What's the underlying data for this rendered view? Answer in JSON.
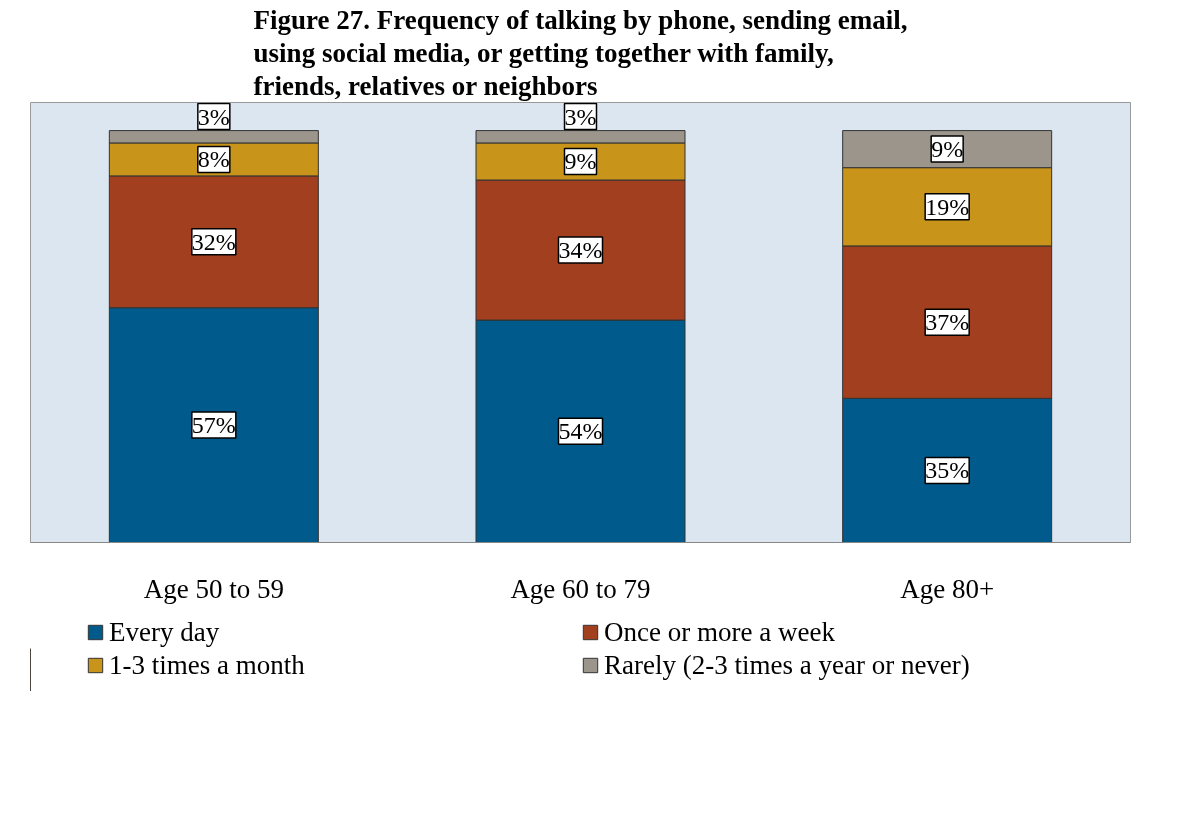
{
  "chart_data": {
    "type": "bar",
    "stacked": true,
    "title": "Figure 27. Frequency of talking by phone, sending email, using social media, or getting together with family, friends, relatives or neighbors",
    "categories": [
      "Age 50 to 59",
      "Age 60 to 79",
      "Age 80+"
    ],
    "series": [
      {
        "name": "Every day",
        "color": "#005a8c",
        "values": [
          57,
          54,
          35
        ],
        "value_labels": [
          "57%",
          "54%",
          "35%"
        ]
      },
      {
        "name": "Once or more a week",
        "color": "#a23f1f",
        "values": [
          32,
          34,
          37
        ],
        "value_labels": [
          "32%",
          "34%",
          "37%"
        ]
      },
      {
        "name": "1-3 times a month",
        "color": "#c8941a",
        "values": [
          8,
          9,
          19
        ],
        "value_labels": [
          "8%",
          "9%",
          "19%"
        ]
      },
      {
        "name": "Rarely (2-3 times a year or never)",
        "color": "#9b958c",
        "values": [
          3,
          3,
          9
        ],
        "value_labels": [
          "3%",
          "3%",
          "9%"
        ]
      }
    ],
    "tick_labels": "x",
    "legend": "bottom"
  }
}
